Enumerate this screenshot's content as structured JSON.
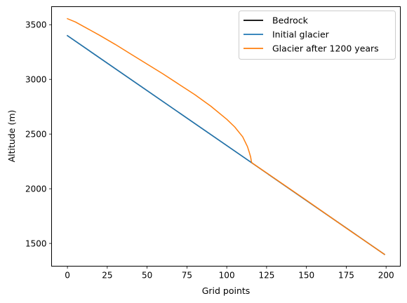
{
  "chart_data": {
    "type": "line",
    "xlabel": "Grid points",
    "ylabel": "Altitude (m)",
    "xlim": [
      -9.95,
      208.95
    ],
    "ylim": [
      1292,
      3665
    ],
    "xticks": [
      0,
      25,
      50,
      75,
      100,
      125,
      150,
      175,
      200
    ],
    "yticks": [
      1500,
      2000,
      2500,
      3000,
      3500
    ],
    "grid": false,
    "legend_position": "top-right",
    "series": [
      {
        "name": "Bedrock",
        "color": "#000000",
        "x": [
          0,
          199
        ],
        "y": [
          3400,
          1400
        ]
      },
      {
        "name": "Initial glacier",
        "color": "#1f77b4",
        "x": [
          0,
          199
        ],
        "y": [
          3400,
          1400
        ]
      },
      {
        "name": "Glacier after 1200 years",
        "color": "#ff7f0e",
        "x": [
          0,
          5,
          10,
          20,
          30,
          40,
          50,
          60,
          70,
          80,
          90,
          100,
          105,
          110,
          113,
          114,
          115,
          115.5,
          116,
          125,
          150,
          175,
          199
        ],
        "y": [
          3555,
          3525,
          3485,
          3405,
          3320,
          3230,
          3140,
          3050,
          2955,
          2860,
          2755,
          2635,
          2565,
          2475,
          2385,
          2340,
          2290,
          2245,
          2235,
          2145,
          1895,
          1640,
          1400
        ]
      }
    ]
  }
}
